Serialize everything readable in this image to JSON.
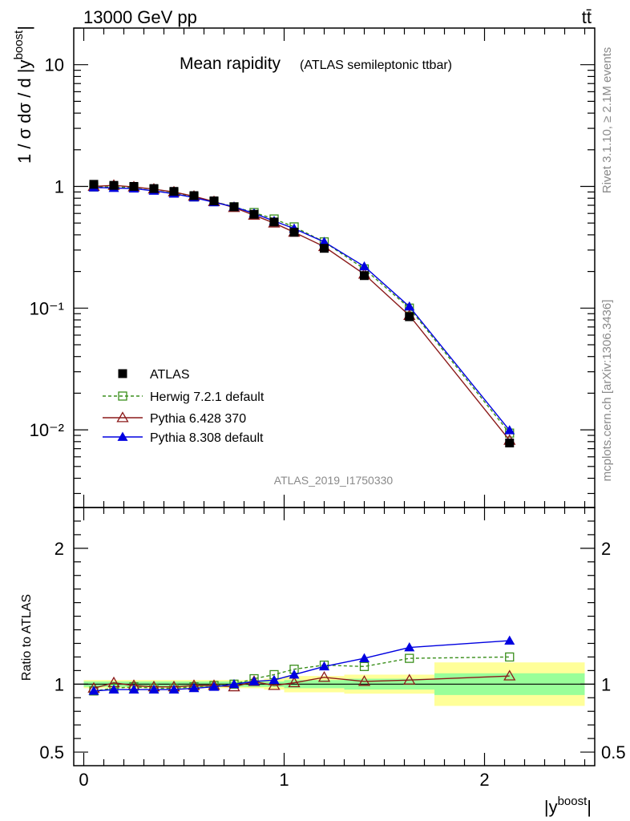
{
  "header": {
    "energy": "13000 GeV pp",
    "process": "tt̄"
  },
  "side": {
    "rivet": "Rivet 3.1.10, ≥ 2.1M events",
    "mcplots": "mcplots.cern.ch [arXiv:1306.3436]"
  },
  "chart_data": {
    "type": "line",
    "title": "Mean rapidity",
    "subtitle": "(ATLAS semileptonic ttbar)",
    "analysis": "ATLAS_2019_I1750330",
    "xlabel": "|y",
    "xlabel_sup": "boost",
    "xlabel_close": "|",
    "ylabel": "1 / σ dσ / d |y",
    "ylabel_sup": "boost",
    "ylabel_close": "|",
    "ratio_ylabel": "Ratio to ATLAS",
    "xlim": [
      -0.05,
      2.55
    ],
    "ylim": [
      0.0023,
      20
    ],
    "ratio_ylim": [
      0.4,
      2.3
    ],
    "x_ticks": [
      "0",
      "1",
      "2"
    ],
    "y_ticks": [
      "10",
      "1",
      "10⁻¹",
      "10⁻²"
    ],
    "ratio_ticks": [
      "2",
      "1",
      "0.5"
    ],
    "colors": {
      "data": "#000000",
      "herwig": "#3a8f1b",
      "pythia6": "#8b1a1a",
      "pythia8": "#0000e0",
      "band_inner": "#99ff99",
      "band_outer": "#ffff99"
    },
    "x": [
      0.05,
      0.15,
      0.25,
      0.35,
      0.45,
      0.55,
      0.65,
      0.75,
      0.85,
      0.95,
      1.05,
      1.2,
      1.4,
      1.625,
      2.125
    ],
    "bin_edges": [
      0.0,
      0.1,
      0.2,
      0.3,
      0.4,
      0.5,
      0.6,
      0.7,
      0.8,
      0.9,
      1.0,
      1.1,
      1.3,
      1.5,
      1.75,
      2.5
    ],
    "band_inner": [
      0.02,
      0.02,
      0.02,
      0.02,
      0.02,
      0.02,
      0.02,
      0.02,
      0.02,
      0.02,
      0.03,
      0.03,
      0.04,
      0.04,
      0.08
    ],
    "band_outer": [
      0.03,
      0.03,
      0.03,
      0.03,
      0.03,
      0.03,
      0.03,
      0.03,
      0.03,
      0.04,
      0.06,
      0.06,
      0.07,
      0.07,
      0.16
    ],
    "series": [
      {
        "key": "data",
        "name": "ATLAS",
        "marker": "square-filled",
        "values": [
          1.04,
          1.02,
          1.0,
          0.96,
          0.91,
          0.84,
          0.76,
          0.68,
          0.59,
          0.51,
          0.42,
          0.31,
          0.185,
          0.085,
          0.0078
        ]
      },
      {
        "key": "herwig",
        "name": "Herwig 7.2.1 default",
        "marker": "square-open",
        "dashed": true,
        "values": [
          0.99,
          0.99,
          0.98,
          0.95,
          0.89,
          0.82,
          0.75,
          0.68,
          0.61,
          0.54,
          0.465,
          0.35,
          0.21,
          0.1,
          0.0094
        ]
      },
      {
        "key": "pythia6",
        "name": "Pythia 6.428 370",
        "marker": "triangle-open",
        "values": [
          1.0,
          1.02,
          0.99,
          0.95,
          0.9,
          0.83,
          0.75,
          0.67,
          0.58,
          0.5,
          0.42,
          0.32,
          0.19,
          0.087,
          0.0082
        ]
      },
      {
        "key": "pythia8",
        "name": "Pythia 8.308 default",
        "marker": "triangle-filled",
        "values": [
          0.98,
          0.97,
          0.96,
          0.92,
          0.87,
          0.81,
          0.74,
          0.68,
          0.6,
          0.52,
          0.45,
          0.35,
          0.22,
          0.103,
          0.0099
        ]
      }
    ],
    "ratios": {
      "herwig": [
        0.95,
        0.97,
        0.98,
        0.97,
        0.97,
        0.98,
        0.99,
        1.0,
        1.04,
        1.07,
        1.11,
        1.14,
        1.13,
        1.19,
        1.2
      ],
      "pythia6": [
        0.97,
        1.01,
        0.99,
        0.98,
        0.98,
        0.99,
        0.99,
        0.98,
        1.02,
        0.99,
        1.01,
        1.05,
        1.02,
        1.03,
        1.06
      ],
      "pythia8": [
        0.95,
        0.96,
        0.96,
        0.96,
        0.96,
        0.97,
        0.98,
        1.0,
        1.02,
        1.03,
        1.07,
        1.13,
        1.19,
        1.27,
        1.32
      ]
    }
  }
}
